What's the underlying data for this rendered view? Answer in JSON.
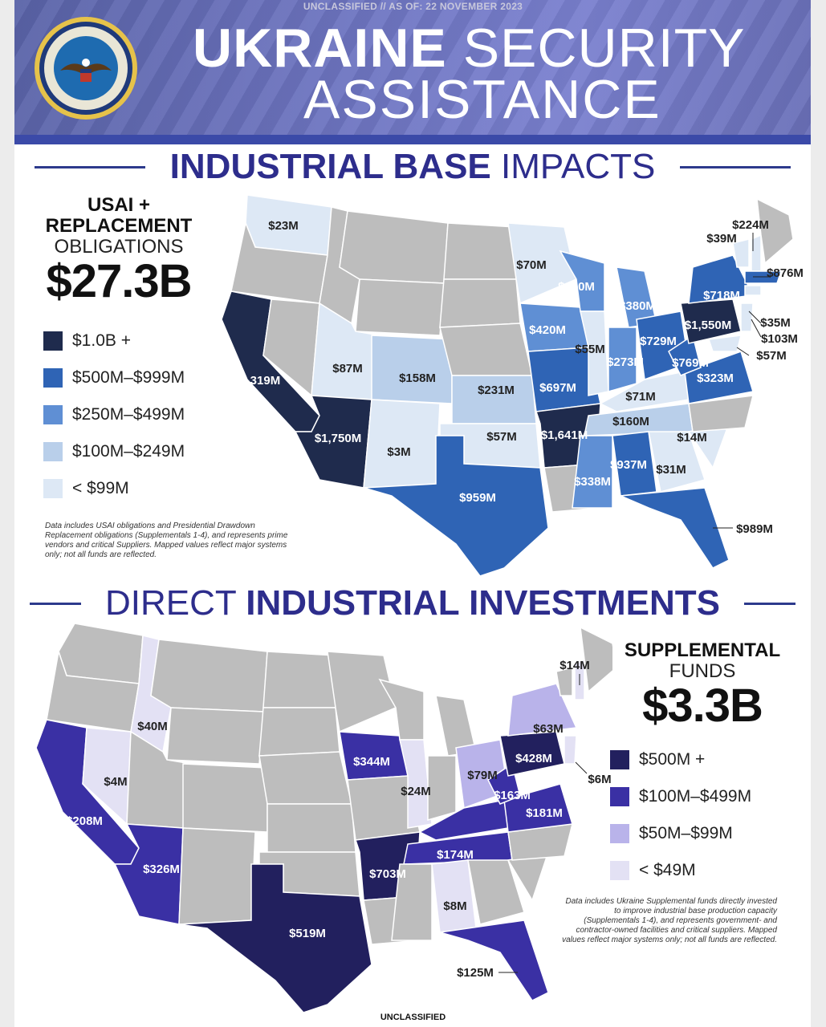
{
  "header": {
    "classification_top": "UNCLASSIFIED // AS OF: 22 NOVEMBER 2023",
    "title_bold": "UKRAINE",
    "title_light_1": "SECURITY",
    "title_light_2": "ASSISTANCE",
    "seal_text": "DEPARTMENT OF DEFENSE · UNITED STATES OF AMERICA"
  },
  "section1": {
    "heading_bold": "INDUSTRIAL BASE",
    "heading_light": "IMPACTS",
    "legend_title_bold_1": "USAI +",
    "legend_title_bold_2": "REPLACEMENT",
    "legend_title_light": "OBLIGATIONS",
    "legend_total": "$27.3B",
    "legend": [
      {
        "label": "$1.0B +",
        "color": "#1f2b4d"
      },
      {
        "label": "$500M–$999M",
        "color": "#2f64b5"
      },
      {
        "label": "$250M–$499M",
        "color": "#5f8fd4"
      },
      {
        "label": "$100M–$249M",
        "color": "#b9cfea"
      },
      {
        "label": "< $99M",
        "color": "#dde8f5"
      }
    ],
    "note": "Data includes USAI obligations and Presidential Drawdown Replacement obligations (Supplementals 1-4), and represents prime vendors and critical Suppliers. Mapped values reflect major systems only; not all funds are reflected.",
    "values": {
      "WA": "$23M",
      "CA": "$1,319M",
      "AZ": "$1,750M",
      "UT": "$87M",
      "CO": "$158M",
      "NM": "$3M",
      "TX": "$959M",
      "KS": "$231M",
      "OK": "$57M",
      "MN": "$70M",
      "WI": "$460M",
      "IA": "$420M",
      "IL": "$55M",
      "MO": "$697M",
      "AR": "$1,641M",
      "MS": "$338M",
      "AL": "$937M",
      "GA": "$31M",
      "FL": "$989M",
      "TN": "$160M",
      "KY": "$71M",
      "IN": "$273M",
      "OH": "$729M",
      "MI": "$380M",
      "WV": "$769M",
      "VA": "$323M",
      "SC": "$14M",
      "PA": "$1,550M",
      "NY": "$718M",
      "VT": "$39M",
      "ME": "$224M",
      "MA": "$876M",
      "CT": "$35M",
      "NJ": "$103M",
      "MD": "$57M"
    }
  },
  "section2": {
    "heading_light": "DIRECT",
    "heading_bold": "INDUSTRIAL INVESTMENTS",
    "legend_title_bold": "SUPPLEMENTAL",
    "legend_title_light": "FUNDS",
    "legend_total": "$3.3B",
    "legend": [
      {
        "label": "$500M +",
        "color": "#22205e"
      },
      {
        "label": "$100M–$499M",
        "color": "#3a30a4"
      },
      {
        "label": "$50M–$99M",
        "color": "#b9b3ea"
      },
      {
        "label": "< $49M",
        "color": "#e3e1f4"
      }
    ],
    "note": "Data includes Ukraine Supplemental funds directly invested to improve industrial base production capacity (Supplementals 1-4), and represents government- and contractor-owned facilities and critical suppliers. Mapped values reflect major systems only; not all funds are reflected.",
    "values": {
      "ID": "$40M",
      "NV": "$4M",
      "CA": "$208M",
      "AZ": "$326M",
      "TX": "$519M",
      "IA": "$344M",
      "IL": "$24M",
      "AR": "$703M",
      "AL": "$8M",
      "FL": "$125M",
      "TN": "$174M",
      "KY": "$163M",
      "OH": "$79M",
      "VA": "$181M",
      "PA": "$428M",
      "NY": "$63M",
      "NH": "$14M",
      "NJ": "$6M"
    }
  },
  "footer": {
    "classification_bottom": "UNCLASSIFIED"
  },
  "colors": {
    "gray_state": "#bdbdbd",
    "heading_navy": "#2d2d8c"
  }
}
